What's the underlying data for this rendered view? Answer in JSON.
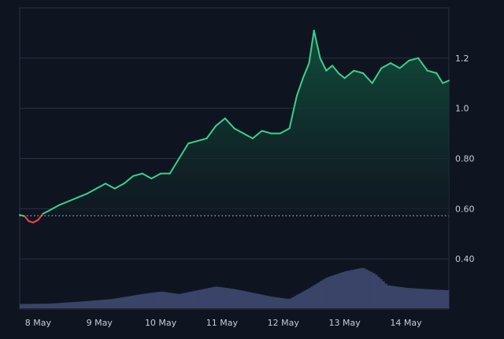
{
  "chart_data": {
    "type": "area",
    "x_ticks": [
      "8 May",
      "9 May",
      "10 May",
      "11 May",
      "12 May",
      "13 May",
      "14 May"
    ],
    "y_ticks": [
      "1.2",
      "1.0",
      "0.80",
      "0.60",
      "0.40"
    ],
    "y_tick_values": [
      1.2,
      1.0,
      0.8,
      0.6,
      0.4
    ],
    "ylim": [
      0.2,
      1.4
    ],
    "xlim": [
      0,
      7.0
    ],
    "grid": true,
    "baseline": 0.572,
    "colors": {
      "background": "#0f1520",
      "grid": "#2a3140",
      "up_line": "#3ad08f",
      "down_line": "#f0454c",
      "area_top": "#12523d",
      "area_bottom": "#0f1a22",
      "volume": "#3a4468",
      "baseline": "#c7ccd6",
      "tick_label": "#c7ccd6"
    },
    "series": [
      {
        "values": [
          [
            0.0,
            0.575
          ],
          [
            0.08,
            0.57
          ],
          [
            0.15,
            0.55
          ],
          [
            0.22,
            0.545
          ],
          [
            0.3,
            0.555
          ],
          [
            0.38,
            0.58
          ],
          [
            0.5,
            0.595
          ],
          [
            0.65,
            0.615
          ],
          [
            0.8,
            0.63
          ],
          [
            0.95,
            0.645
          ],
          [
            1.1,
            0.66
          ],
          [
            1.25,
            0.68
          ],
          [
            1.4,
            0.7
          ],
          [
            1.55,
            0.68
          ],
          [
            1.7,
            0.7
          ],
          [
            1.85,
            0.73
          ],
          [
            2.0,
            0.74
          ],
          [
            2.15,
            0.72
          ],
          [
            2.3,
            0.74
          ],
          [
            2.45,
            0.74
          ],
          [
            2.6,
            0.8
          ],
          [
            2.75,
            0.86
          ],
          [
            2.9,
            0.87
          ],
          [
            3.05,
            0.88
          ],
          [
            3.2,
            0.93
          ],
          [
            3.35,
            0.96
          ],
          [
            3.5,
            0.92
          ],
          [
            3.65,
            0.9
          ],
          [
            3.8,
            0.88
          ],
          [
            3.95,
            0.91
          ],
          [
            4.1,
            0.9
          ],
          [
            4.25,
            0.9
          ],
          [
            4.4,
            0.92
          ],
          [
            4.52,
            1.05
          ],
          [
            4.62,
            1.12
          ],
          [
            4.72,
            1.18
          ],
          [
            4.8,
            1.31
          ],
          [
            4.9,
            1.2
          ],
          [
            5.0,
            1.15
          ],
          [
            5.1,
            1.17
          ],
          [
            5.2,
            1.14
          ],
          [
            5.3,
            1.12
          ],
          [
            5.45,
            1.15
          ],
          [
            5.6,
            1.14
          ],
          [
            5.75,
            1.1
          ],
          [
            5.9,
            1.16
          ],
          [
            6.05,
            1.18
          ],
          [
            6.2,
            1.16
          ],
          [
            6.35,
            1.19
          ],
          [
            6.5,
            1.2
          ],
          [
            6.65,
            1.15
          ],
          [
            6.8,
            1.14
          ],
          [
            6.9,
            1.1
          ],
          [
            7.0,
            1.11
          ]
        ]
      }
    ],
    "volume": [
      [
        0.0,
        0.02
      ],
      [
        0.5,
        0.022
      ],
      [
        1.0,
        0.03
      ],
      [
        1.5,
        0.04
      ],
      [
        2.0,
        0.06
      ],
      [
        2.3,
        0.07
      ],
      [
        2.6,
        0.06
      ],
      [
        2.9,
        0.075
      ],
      [
        3.2,
        0.09
      ],
      [
        3.5,
        0.08
      ],
      [
        3.8,
        0.065
      ],
      [
        4.1,
        0.05
      ],
      [
        4.4,
        0.04
      ],
      [
        4.7,
        0.08
      ],
      [
        5.0,
        0.125
      ],
      [
        5.3,
        0.15
      ],
      [
        5.6,
        0.165
      ],
      [
        5.8,
        0.14
      ],
      [
        6.0,
        0.095
      ],
      [
        6.3,
        0.085
      ],
      [
        6.6,
        0.08
      ],
      [
        7.0,
        0.075
      ]
    ]
  }
}
